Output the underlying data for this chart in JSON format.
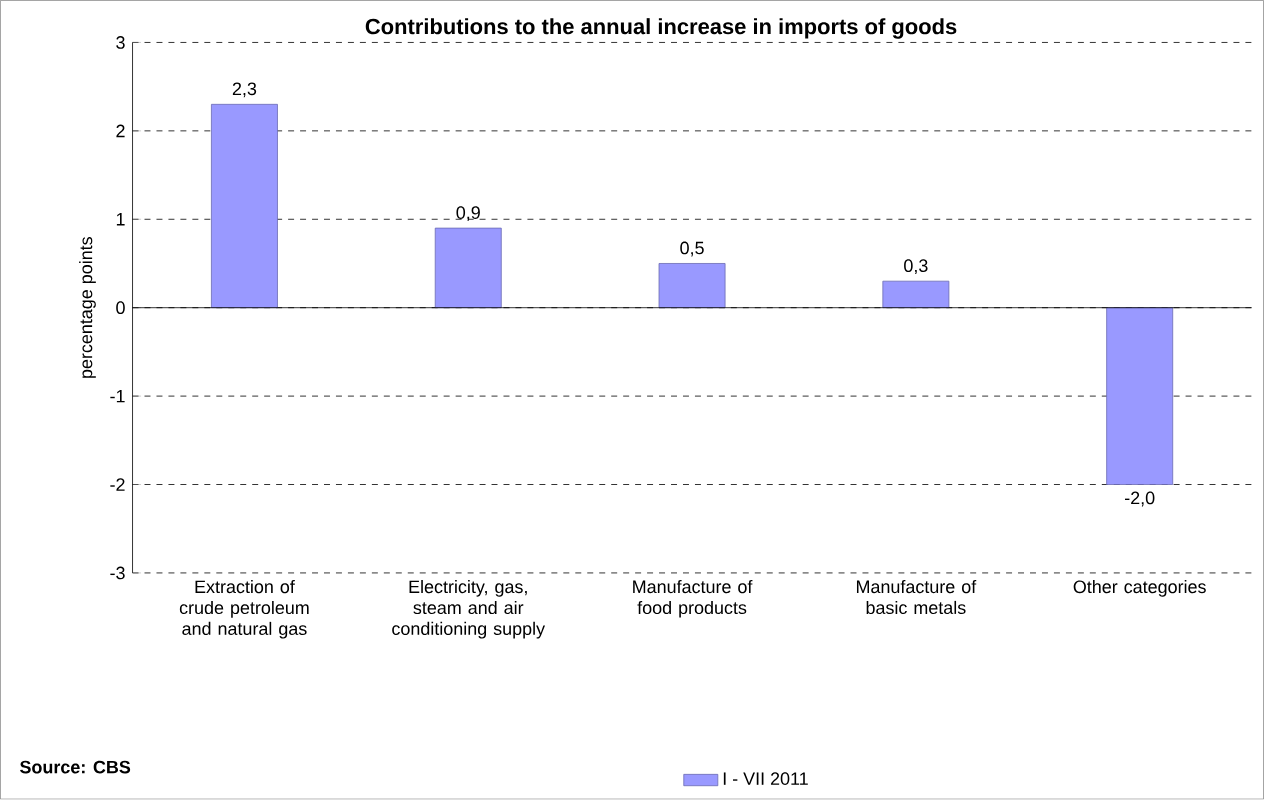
{
  "chart_data": {
    "type": "bar",
    "title": "Contributions to the annual increase in imports of goods",
    "ylabel": "percentage points",
    "categories": [
      "Extraction of crude petroleum and natural gas",
      "Electricity, gas, steam and air conditioning supply",
      "Manufacture of food products",
      "Manufacture of basic metals",
      "Other categories"
    ],
    "series": [
      {
        "name": "I - VII 2011",
        "color": "#9999ff",
        "values": [
          2.3,
          0.9,
          0.5,
          0.3,
          -2.0
        ],
        "value_labels": [
          "2,3",
          "0,9",
          "0,5",
          "0,3",
          "-2,0"
        ]
      }
    ],
    "ylim": [
      -3,
      3
    ],
    "yticks": [
      -3,
      -2,
      -1,
      0,
      1,
      2,
      3
    ],
    "grid": "y",
    "legend": "bottom",
    "annotations": [
      "Source: CBS"
    ]
  }
}
